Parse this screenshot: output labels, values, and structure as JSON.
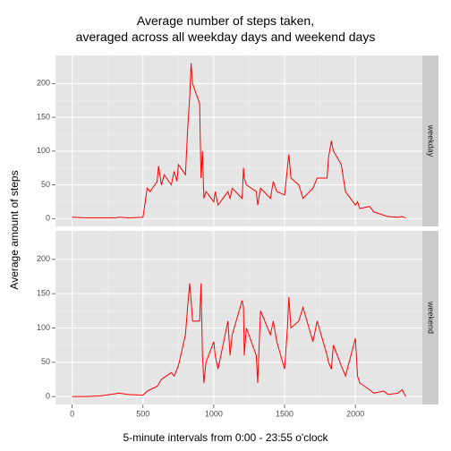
{
  "chart_data": {
    "type": "line",
    "title": "Average number of steps taken,\naveraged across all weekday days and weekend days",
    "x_label": "5-minute intervals from 0:00 - 23:55 o'clock",
    "y_label": "Average amount of steps",
    "x": [
      0,
      100,
      200,
      300,
      330,
      400,
      500,
      530,
      550,
      600,
      610,
      630,
      650,
      700,
      720,
      740,
      750,
      800,
      815,
      830,
      840,
      850,
      900,
      910,
      920,
      930,
      945,
      1000,
      1010,
      1030,
      1100,
      1115,
      1130,
      1200,
      1210,
      1215,
      1230,
      1300,
      1310,
      1330,
      1400,
      1420,
      1445,
      1500,
      1520,
      1530,
      1545,
      1600,
      1630,
      1700,
      1730,
      1800,
      1810,
      1830,
      1845,
      1900,
      1930,
      2000,
      2015,
      2030,
      2100,
      2130,
      2200,
      2230,
      2300,
      2330,
      2355
    ],
    "series": [
      {
        "name": "weekday",
        "color": "#ff0000",
        "values": [
          2,
          1,
          1,
          1,
          2,
          1,
          2,
          45,
          40,
          55,
          78,
          50,
          65,
          50,
          70,
          55,
          80,
          65,
          130,
          180,
          230,
          200,
          170,
          60,
          100,
          30,
          40,
          25,
          40,
          20,
          40,
          30,
          45,
          30,
          75,
          60,
          50,
          40,
          20,
          45,
          30,
          55,
          40,
          35,
          75,
          95,
          60,
          50,
          30,
          45,
          60,
          60,
          90,
          115,
          100,
          80,
          40,
          20,
          25,
          15,
          18,
          10,
          5,
          3,
          2,
          3,
          1
        ]
      },
      {
        "name": "weekend",
        "color": "#ff0000",
        "values": [
          0,
          0,
          1,
          4,
          5,
          3,
          2,
          8,
          10,
          15,
          18,
          25,
          28,
          35,
          30,
          40,
          45,
          90,
          130,
          165,
          140,
          110,
          110,
          165,
          60,
          20,
          50,
          80,
          60,
          40,
          110,
          60,
          90,
          140,
          130,
          60,
          100,
          60,
          20,
          125,
          90,
          110,
          80,
          40,
          100,
          145,
          100,
          110,
          130,
          80,
          110,
          60,
          50,
          40,
          75,
          45,
          30,
          85,
          30,
          20,
          10,
          5,
          8,
          3,
          5,
          10,
          0
        ]
      }
    ],
    "xlim": [
      -117.75,
      2472.75
    ],
    "ylim": [
      -11.5,
      241.5
    ],
    "xticks": [
      0,
      500,
      1000,
      1500,
      2000
    ],
    "yticks": [
      0,
      50,
      100,
      150,
      200
    ],
    "grid": true
  }
}
